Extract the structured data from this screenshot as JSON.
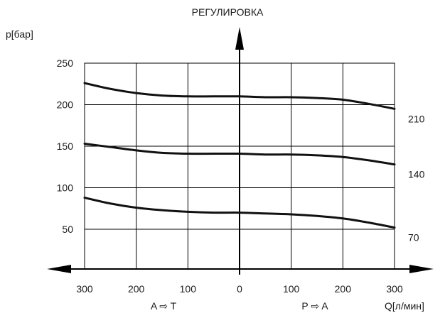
{
  "chart_data": {
    "type": "line",
    "title": "РЕГУЛИРОВКА",
    "ylabel": "p[бар]",
    "xlabel": "Q[л/мин]",
    "x_direction_labels": {
      "left": "A ⇨ T",
      "right": "P ⇨ A"
    },
    "xlim": [
      -300,
      300
    ],
    "ylim": [
      0,
      250
    ],
    "x_ticks": [
      -300,
      -200,
      -100,
      0,
      100,
      200,
      300
    ],
    "x_tick_labels": [
      "300",
      "200",
      "100",
      "0",
      "100",
      "200",
      "300"
    ],
    "y_ticks": [
      50,
      100,
      150,
      200,
      250
    ],
    "y_tick_labels": [
      "50",
      "100",
      "150",
      "200",
      "250"
    ],
    "grid": true,
    "series": [
      {
        "name": "210",
        "x": [
          -300,
          -250,
          -200,
          -150,
          -100,
          -50,
          0,
          50,
          100,
          150,
          200,
          250,
          300
        ],
        "values": [
          226,
          219,
          214,
          211,
          210,
          210,
          210,
          209,
          209,
          208,
          206,
          201,
          195
        ]
      },
      {
        "name": "140",
        "x": [
          -300,
          -250,
          -200,
          -150,
          -100,
          -50,
          0,
          50,
          100,
          150,
          200,
          250,
          300
        ],
        "values": [
          153,
          149,
          145,
          142,
          141,
          141,
          141,
          140,
          140,
          139,
          137,
          133,
          128
        ]
      },
      {
        "name": "70",
        "x": [
          -300,
          -250,
          -200,
          -150,
          -100,
          -50,
          0,
          50,
          100,
          150,
          200,
          250,
          300
        ],
        "values": [
          88,
          81,
          76,
          73,
          71,
          70,
          70,
          69,
          68,
          66,
          63,
          58,
          52
        ]
      }
    ]
  }
}
